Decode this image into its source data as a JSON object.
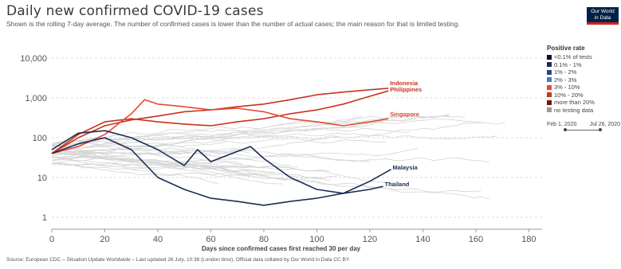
{
  "title": "Daily new confirmed COVID-19 cases",
  "subtitle": "Shown is the rolling 7-day average. The number of confirmed cases is lower than the number of actual cases; the main reason for that is limited testing.",
  "logo": {
    "line1": "Our World",
    "line2": "in Data"
  },
  "legend": {
    "title": "Positive rate",
    "items": [
      {
        "label": "<0.1% of tests",
        "color": "#0a0f2e"
      },
      {
        "label": "0.1% - 1%",
        "color": "#1b2c55"
      },
      {
        "label": "1% - 2%",
        "color": "#1f4a8a"
      },
      {
        "label": "2% - 3%",
        "color": "#3f7fc4"
      },
      {
        "label": "3% - 10%",
        "color": "#e34a33"
      },
      {
        "label": "10% - 20%",
        "color": "#c8331f"
      },
      {
        "label": "more than 20%",
        "color": "#7a1010"
      },
      {
        "label": "no testing data",
        "color": "#999999"
      }
    ]
  },
  "timeline": {
    "start": "Feb 1, 2020",
    "end": "Jul 26, 2020"
  },
  "source": "Source: European CDC – Situation Update Worldwide – Last updated 26 July, 10:38 (London time), Official data collated by Our World in Data CC BY",
  "chart_data": {
    "type": "line",
    "xlabel": "Days since confirmed cases first reached 30 per day",
    "ylabel": "",
    "y_scale": "log",
    "xlim": [
      0,
      185
    ],
    "ylim": [
      0.5,
      20000
    ],
    "x_ticks": [
      0,
      20,
      40,
      60,
      80,
      100,
      120,
      140,
      160,
      180
    ],
    "y_ticks": [
      {
        "value": 1,
        "label": "1"
      },
      {
        "value": 10,
        "label": "10"
      },
      {
        "value": 100,
        "label": "100"
      },
      {
        "value": 1000,
        "label": "1,000"
      },
      {
        "value": 10000,
        "label": "10,000"
      }
    ],
    "grid": true,
    "series": [
      {
        "name": "Indonesia",
        "color": "#c8331f",
        "x": [
          0,
          10,
          20,
          30,
          40,
          50,
          60,
          70,
          80,
          90,
          100,
          110,
          120,
          127
        ],
        "y": [
          40,
          100,
          200,
          280,
          350,
          450,
          500,
          600,
          700,
          900,
          1200,
          1400,
          1600,
          1750
        ]
      },
      {
        "name": "Philippines",
        "color": "#c8331f",
        "x": [
          0,
          10,
          20,
          30,
          40,
          50,
          60,
          70,
          80,
          90,
          100,
          110,
          120,
          127
        ],
        "y": [
          40,
          120,
          250,
          300,
          250,
          220,
          200,
          250,
          300,
          400,
          500,
          700,
          1100,
          1500
        ]
      },
      {
        "name": "Singapore",
        "color": "#e34a33",
        "x": [
          0,
          10,
          20,
          30,
          35,
          40,
          50,
          60,
          70,
          80,
          90,
          100,
          110,
          120,
          127
        ],
        "y": [
          40,
          60,
          120,
          400,
          900,
          700,
          600,
          500,
          550,
          450,
          300,
          250,
          200,
          250,
          300
        ]
      },
      {
        "name": "Malaysia",
        "color": "#1b2c55",
        "x": [
          0,
          10,
          20,
          30,
          40,
          50,
          55,
          60,
          70,
          75,
          80,
          90,
          100,
          110,
          120,
          128
        ],
        "y": [
          50,
          130,
          150,
          100,
          50,
          20,
          50,
          25,
          45,
          60,
          30,
          10,
          5,
          4,
          8,
          16
        ]
      },
      {
        "name": "Thailand",
        "color": "#1b2c55",
        "x": [
          0,
          10,
          20,
          30,
          40,
          50,
          60,
          70,
          80,
          90,
          100,
          110,
          120,
          125
        ],
        "y": [
          40,
          70,
          100,
          50,
          10,
          5,
          3,
          2.5,
          2,
          2.5,
          3,
          4,
          5,
          6
        ]
      }
    ]
  }
}
